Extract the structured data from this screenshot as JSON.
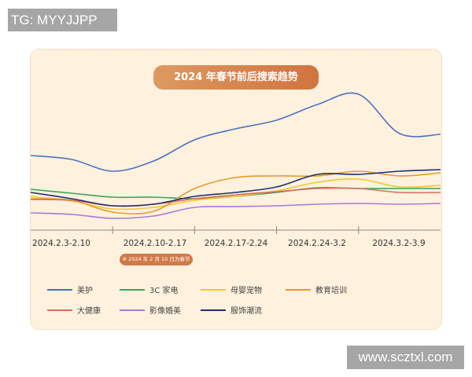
{
  "watermark_top": "TG: MYYJJPP",
  "watermark_bottom": "www.scztxl.com",
  "chart_data": {
    "type": "line",
    "title": "2024 年春节前后搜索趋势",
    "note": "2024 年 2 月 10 日为春节",
    "categories": [
      "2024.2.3-2.10",
      "2024.2.10-2.17",
      "2024.2.17-2.24",
      "2024.2.24-3.2",
      "2024.3.2-3.9"
    ],
    "x": [
      0,
      0.5,
      1,
      1.5,
      2,
      2.5,
      3,
      3.5,
      4,
      4.5,
      5
    ],
    "ylim": [
      0,
      200
    ],
    "xlabel": "",
    "ylabel": "",
    "grid": false,
    "legend_placement": "bottom",
    "series": [
      {
        "name": "美护",
        "color": "#4a72c4",
        "values": [
          102,
          97,
          82,
          95,
          122,
          136,
          147,
          167,
          180,
          130,
          129
        ]
      },
      {
        "name": "3C 家电",
        "color": "#3aa55a",
        "values": [
          59,
          54,
          49,
          49,
          47,
          50,
          55,
          61,
          60,
          60,
          60
        ]
      },
      {
        "name": "母婴宠物",
        "color": "#f2c72c",
        "values": [
          50,
          44,
          34,
          36,
          45,
          50,
          57,
          68,
          72,
          62,
          64
        ]
      },
      {
        "name": "教育培训",
        "color": "#e79a2e",
        "values": [
          47,
          45,
          30,
          31,
          60,
          74,
          76,
          76,
          82,
          76,
          80
        ]
      },
      {
        "name": "大健康",
        "color": "#e06b5e",
        "values": [
          46,
          45,
          38,
          40,
          47,
          52,
          56,
          60,
          60,
          55,
          55
        ]
      },
      {
        "name": "影像婚美",
        "color": "#a77ad6",
        "values": [
          29,
          27,
          22,
          25,
          36,
          37,
          38,
          40,
          41,
          40,
          41
        ]
      },
      {
        "name": "服饰潮流",
        "color": "#1e2f6e",
        "values": [
          55,
          47,
          38,
          40,
          50,
          55,
          62,
          78,
          78,
          82,
          84
        ]
      }
    ]
  }
}
